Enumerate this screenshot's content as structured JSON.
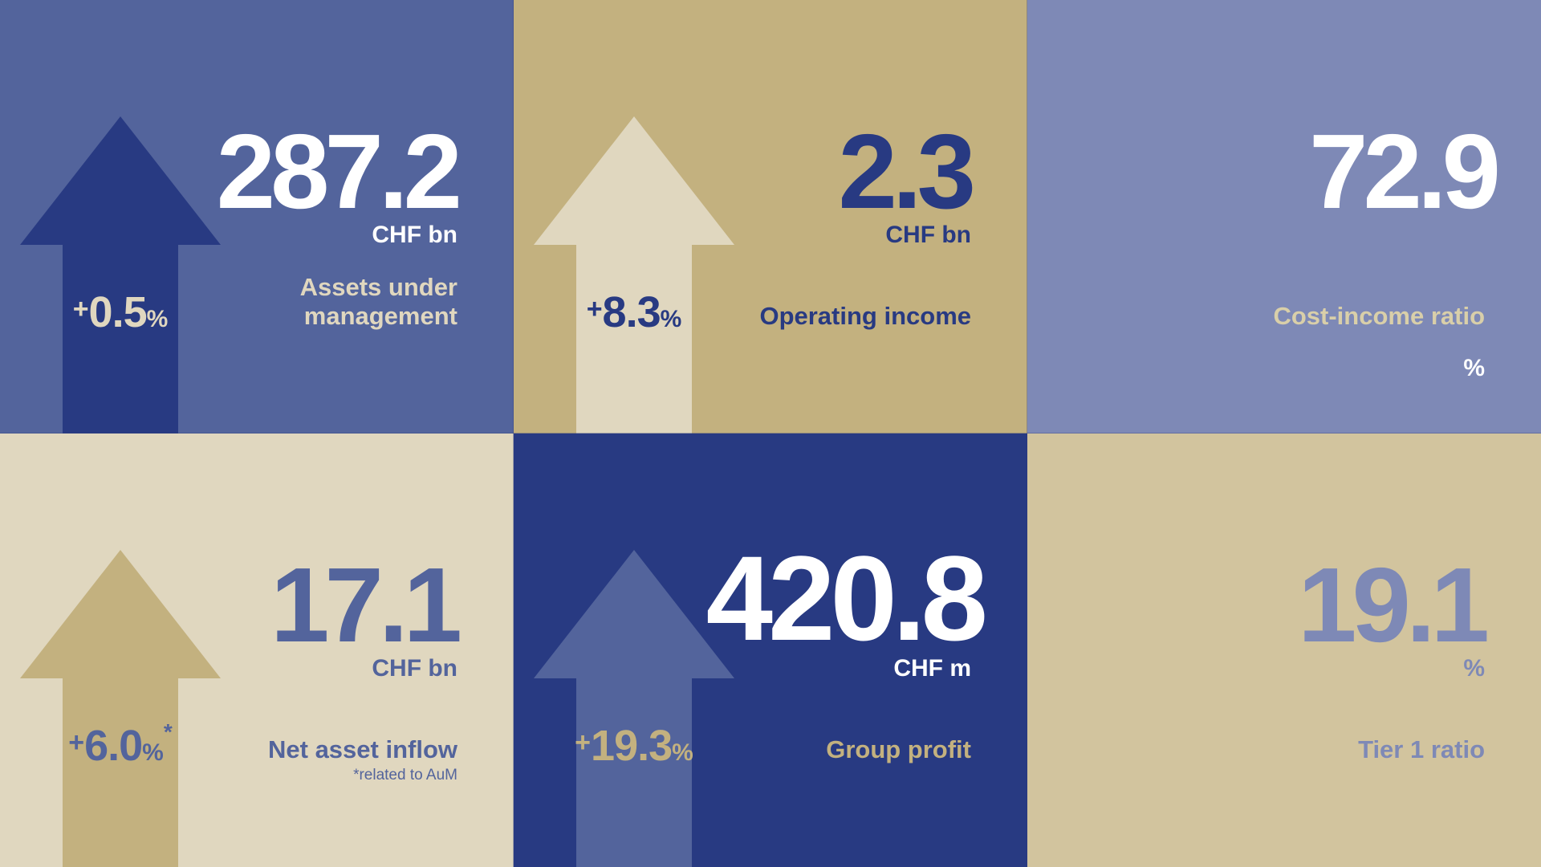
{
  "colors": {
    "navy": "#283a82",
    "blue": "#53649c",
    "periwinkle": "#7e89b6",
    "gold": "#c3b17f",
    "cream": "#e0d7bf",
    "sand": "#d2c49e",
    "white": "#ffffff"
  },
  "tiles": [
    {
      "value": "287.2",
      "unit": "CHF bn",
      "label_line1": "Assets under",
      "label_line2": "management",
      "change_sign": "+",
      "change_value": "0.5",
      "change_unit": "%"
    },
    {
      "value": "2.3",
      "unit": "CHF bn",
      "label": "Operating income",
      "change_sign": "+",
      "change_value": "8.3",
      "change_unit": "%"
    },
    {
      "value": "72.9",
      "label": "Cost-income ratio",
      "unit": "%"
    },
    {
      "value": "17.1",
      "unit": "CHF bn",
      "label": "Net asset inflow",
      "note": "*related to AuM",
      "change_sign": "+",
      "change_value": "6.0",
      "change_unit": "%",
      "change_star": "*"
    },
    {
      "value": "420.8",
      "unit": "CHF m",
      "label": "Group profit",
      "change_sign": "+",
      "change_value": "19.3",
      "change_unit": "%"
    },
    {
      "value": "19.1",
      "unit": "%",
      "label": "Tier 1 ratio"
    }
  ]
}
